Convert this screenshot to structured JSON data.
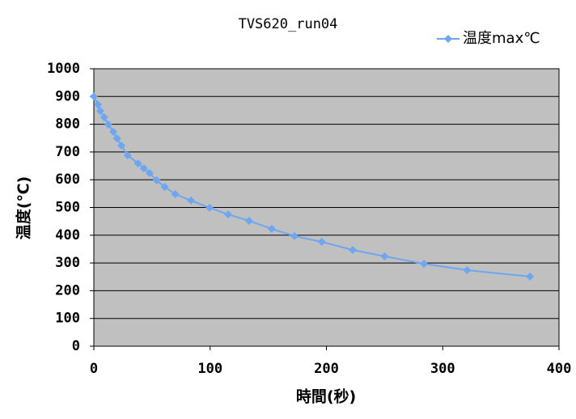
{
  "chart_data": {
    "type": "line",
    "title": "TVS620_run04",
    "x_label": "時間(秒)",
    "y_label": "温度(℃)",
    "x": [
      0,
      3.5,
      5.6,
      9,
      12.5,
      16.7,
      20,
      23.7,
      29,
      38,
      43,
      48,
      54,
      61,
      70,
      83.5,
      99.5,
      115.5,
      133.5,
      153,
      172.5,
      196,
      222.6,
      250,
      284,
      321,
      375
    ],
    "series": [
      {
        "name": "温度max℃",
        "color": "#6ea6f0",
        "values": [
          900,
          871,
          848,
          825,
          799,
          773,
          749,
          723,
          688,
          659,
          641,
          624,
          598,
          574,
          548,
          525,
          499,
          475,
          452,
          423,
          397,
          376,
          347,
          324,
          297,
          274,
          251
        ]
      }
    ],
    "xlim": [
      0,
      400
    ],
    "xticks": [
      0,
      100,
      200,
      300,
      400
    ],
    "ylim": [
      0,
      1000
    ],
    "yticks": [
      0,
      100,
      200,
      300,
      400,
      500,
      600,
      700,
      800,
      900,
      1000
    ],
    "grid": true,
    "legend": "top-right",
    "plot_background": "#c0c0c0"
  }
}
